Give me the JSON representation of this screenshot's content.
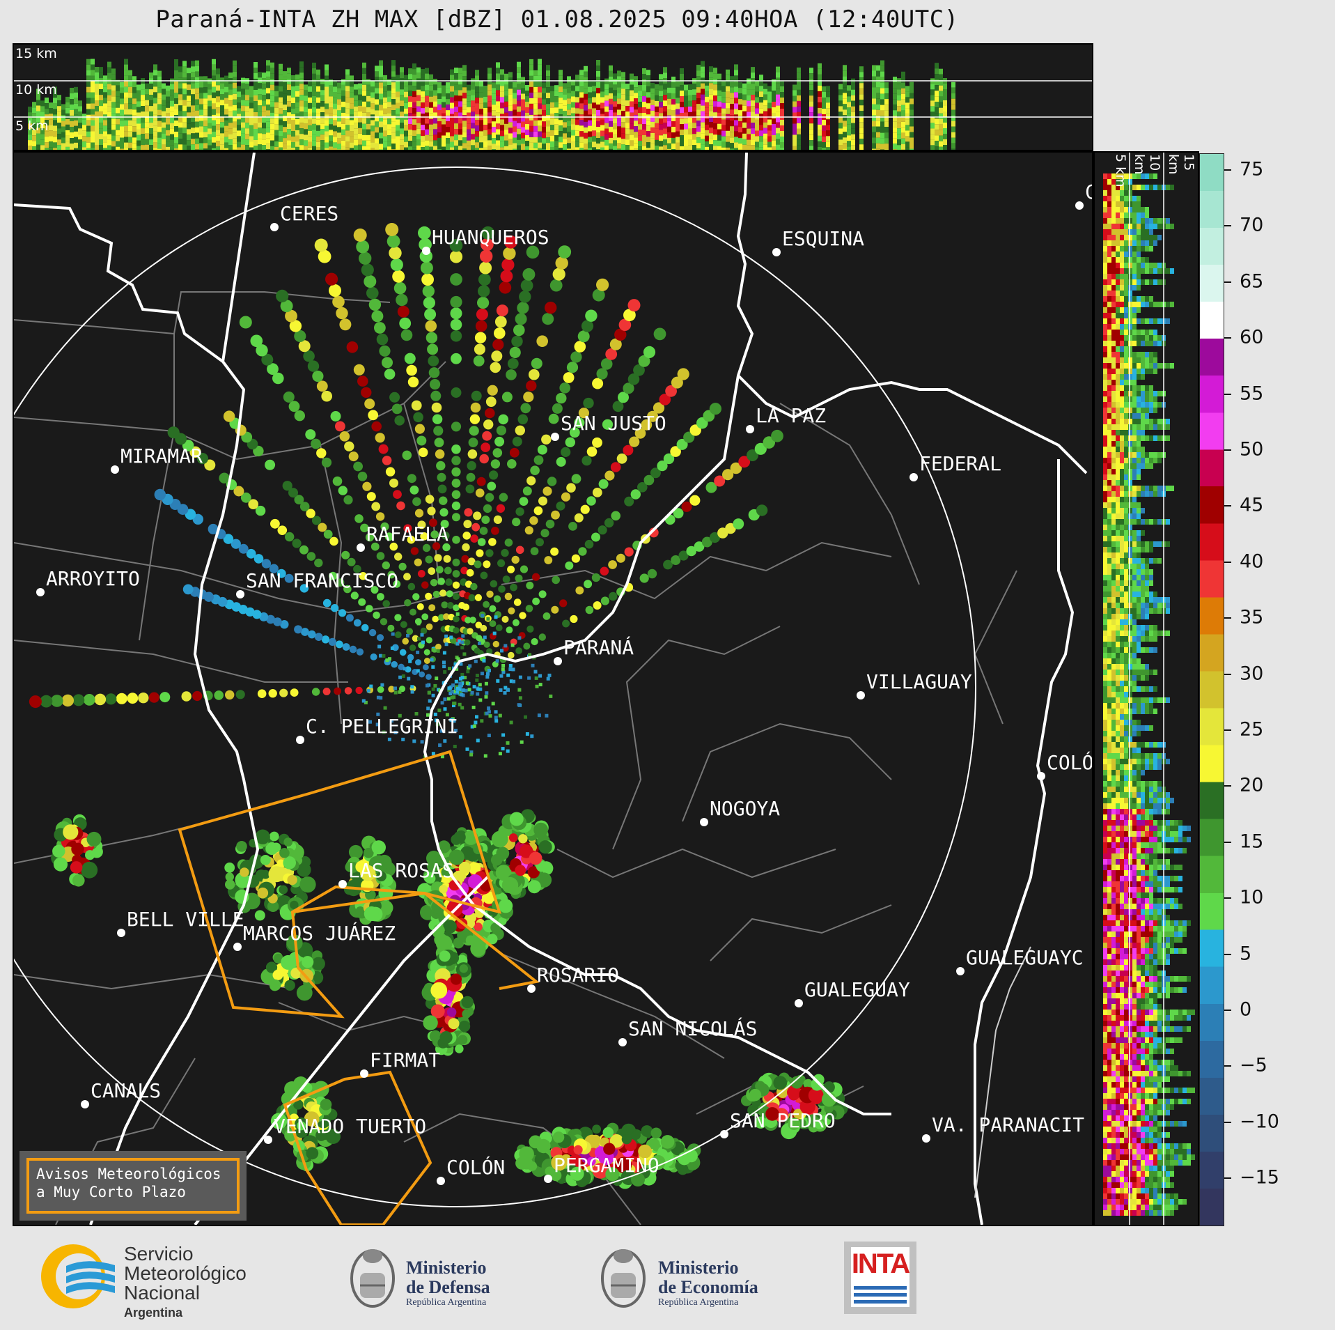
{
  "title": "Paraná-INTA ZH MAX [dBZ] 01.08.2025 09:40HOA (12:40UTC)",
  "top_panel": {
    "km_labels": [
      "15 km",
      "10 km",
      "5 km"
    ]
  },
  "side_panel": {
    "km_labels": [
      "5 km",
      "10 km",
      "15 km"
    ]
  },
  "colorbar": {
    "ticks": [
      "75",
      "70",
      "65",
      "60",
      "55",
      "50",
      "45",
      "40",
      "35",
      "30",
      "25",
      "20",
      "15",
      "10",
      "5",
      "0",
      "−5",
      "−10",
      "−15"
    ]
  },
  "cities": [
    {
      "name": "CERES"
    },
    {
      "name": "HUANQUEROS"
    },
    {
      "name": "ESQUINA"
    },
    {
      "name": "CU"
    },
    {
      "name": "SAN JUSTO"
    },
    {
      "name": "LA PAZ"
    },
    {
      "name": "MIRAMAR"
    },
    {
      "name": "FEDERAL"
    },
    {
      "name": "RAFAELA"
    },
    {
      "name": "ARROYITO"
    },
    {
      "name": "SAN FRANCISCO"
    },
    {
      "name": "PARANÁ"
    },
    {
      "name": "VILLAGUAY"
    },
    {
      "name": "C. PELLEGRINI"
    },
    {
      "name": "COLÓ"
    },
    {
      "name": "NOGOYA"
    },
    {
      "name": "LAS ROSAS"
    },
    {
      "name": "BELL VILLE"
    },
    {
      "name": "MARCOS JUÁREZ"
    },
    {
      "name": "ROSARIO"
    },
    {
      "name": "GUALEGUAYC"
    },
    {
      "name": "GUALEGUAY"
    },
    {
      "name": "SAN NICOLÁS"
    },
    {
      "name": "FIRMAT"
    },
    {
      "name": "CANALS"
    },
    {
      "name": "SAN PEDRO"
    },
    {
      "name": "VENADO TUERTO"
    },
    {
      "name": "VA. PARANACIT"
    },
    {
      "name": "COLÓN"
    },
    {
      "name": "PERGAMINO"
    }
  ],
  "warning_box": {
    "line1": "Avisos Meteorológicos",
    "line2": "a Muy Corto Plazo"
  },
  "logos": {
    "smn": {
      "line1": "Servicio",
      "line2": "Meteorológico",
      "line3": "Nacional",
      "line4": "Argentina"
    },
    "defensa": {
      "line1": "Ministerio",
      "line2": "de Defensa",
      "sub": "República Argentina"
    },
    "economia": {
      "line1": "Ministerio",
      "line2": "de Economía",
      "sub": "República Argentina"
    },
    "inta": {
      "text": "INTA"
    }
  }
}
